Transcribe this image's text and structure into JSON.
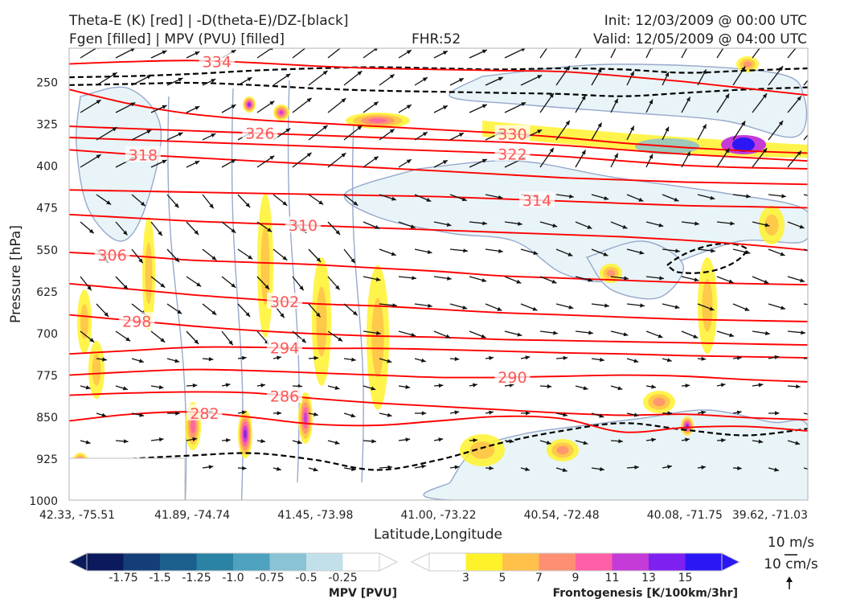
{
  "header": {
    "title_line1": "Theta-E (K) [red] | -D(theta-E)/DZ-[black]",
    "title_line2": "Fgen [filled] | MPV (PVU) [filled]",
    "fhr": "FHR:52",
    "init": "Init: 12/03/2009 @ 00:00 UTC",
    "valid": "Valid: 12/05/2009 @ 04:00 UTC"
  },
  "colors": {
    "theta_e": "#ff0000",
    "label": "#ff5555",
    "stability": "#000000",
    "mpv_outline": "#97a9cc",
    "mpv_fill": "#e8f4f7",
    "frame": "#bfbfbf"
  },
  "chart_data": {
    "type": "cross-section",
    "xlabel": "Latitude,Longitude",
    "ylabel": "Pressure [hPa]",
    "xticks": [
      "42.33, -75.51",
      "41.89, -74.74",
      "41.45, -73.98",
      "41.00, -73.22",
      "40.54, -72.48",
      "40.08, -71.75",
      "39.62, -71.03"
    ],
    "yticks": [
      250,
      325,
      400,
      475,
      550,
      625,
      700,
      775,
      850,
      925,
      1000
    ],
    "ylim": [
      1000,
      190
    ],
    "theta_e_levels": [
      {
        "value": 282,
        "p": [
          858,
          846,
          842,
          852,
          864,
          866,
          858,
          850,
          854,
          878,
          870,
          868,
          876
        ]
      },
      {
        "value": 286,
        "p": [
          812,
          808,
          806,
          808,
          818,
          826,
          832,
          838,
          844,
          848,
          846,
          852,
          856
        ]
      },
      {
        "value": 290,
        "p": [
          776,
          770,
          766,
          768,
          772,
          776,
          780,
          780,
          778,
          776,
          778,
          784,
          788
        ]
      },
      {
        "value": 294,
        "p": [
          738,
          732,
          726,
          726,
          728,
          728,
          730,
          733,
          736,
          738,
          741,
          743,
          745
        ]
      },
      {
        "value": 298,
        "p": [
          668,
          678,
          688,
          696,
          702,
          706,
          708,
          712,
          714,
          716,
          718,
          720,
          722
        ]
      },
      {
        "value": 302,
        "p": [
          612,
          622,
          632,
          640,
          648,
          652,
          658,
          664,
          668,
          672,
          676,
          678,
          680
        ]
      },
      {
        "value": 306,
        "p": [
          556,
          562,
          570,
          574,
          578,
          584,
          590,
          598,
          602,
          606,
          610,
          612,
          614
        ]
      },
      {
        "value": 310,
        "p": [
          488,
          494,
          500,
          504,
          508,
          512,
          516,
          520,
          524,
          528,
          534,
          542,
          552
        ]
      },
      {
        "value": 314,
        "p": [
          444,
          446,
          448,
          450,
          452,
          454,
          456,
          460,
          464,
          468,
          472,
          474,
          476
        ]
      },
      {
        "value": 318,
        "p": [
          372,
          380,
          386,
          392,
          398,
          404,
          410,
          416,
          422,
          426,
          430,
          432,
          434
        ]
      },
      {
        "value": 322,
        "p": [
          350,
          354,
          358,
          362,
          366,
          370,
          374,
          378,
          384,
          392,
          400,
          404,
          406
        ]
      },
      {
        "value": 326,
        "p": [
          330,
          334,
          338,
          342,
          346,
          350,
          354,
          358,
          364,
          372,
          380,
          386,
          392
        ]
      },
      {
        "value": 330,
        "p": [
          264,
          290,
          308,
          318,
          324,
          330,
          336,
          342,
          350,
          360,
          368,
          374,
          378
        ]
      },
      {
        "value": 334,
        "p": [
          218,
          214,
          212,
          216,
          222,
          226,
          228,
          230,
          232,
          240,
          250,
          262,
          274
        ]
      }
    ],
    "stability_contour_samples": [
      {
        "p": [
          242,
          240,
          236,
          230,
          226,
          224,
          226,
          228,
          226,
          228,
          234,
          230,
          226
        ]
      },
      {
        "p": [
          256,
          254,
          252,
          256,
          262,
          266,
          268,
          270,
          272,
          276,
          270,
          264,
          260
        ]
      },
      {
        "p": [
          936,
          926,
          920,
          916,
          928,
          946,
          928,
          898,
          876,
          862,
          874,
          884,
          872
        ]
      }
    ],
    "mpv_colorbar": {
      "label": "MPV [PVU]",
      "ticks": [
        "-1.75",
        "-1.5",
        "-1.25",
        "-1.0",
        "-0.75",
        "-0.5",
        "-0.25"
      ],
      "colors": [
        "#0a1a5c",
        "#153e78",
        "#1a5f8e",
        "#2a83a4",
        "#4fa1c0",
        "#8ac2d6",
        "#c2e0e9",
        "#ffffff"
      ]
    },
    "fgen_colorbar": {
      "label": "Frontogenesis [K/100km/3hr]",
      "ticks": [
        "3",
        "5",
        "7",
        "9",
        "11",
        "13",
        "15"
      ],
      "colors": [
        "#ffffff",
        "#fff22b",
        "#ffc14a",
        "#ff8f73",
        "#ff5fa6",
        "#c43bd8",
        "#7e20f0",
        "#2b17f4"
      ]
    }
  },
  "legend": {
    "wind_ref": "10 m/s",
    "vert_ref": "10 cm/s"
  }
}
